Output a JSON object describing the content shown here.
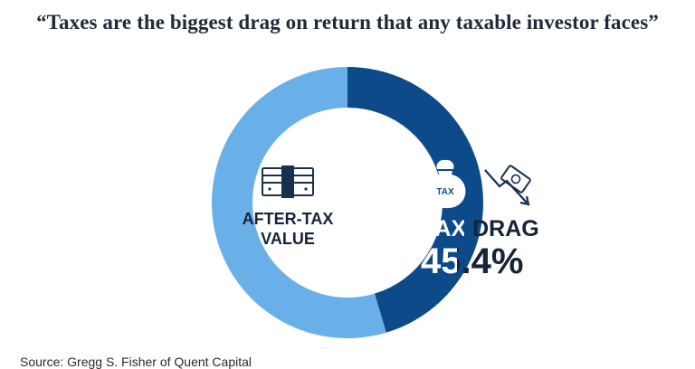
{
  "chart_data": {
    "type": "pie",
    "title": "“Taxes are the biggest drag on return that any taxable investor faces”",
    "slices": [
      {
        "label": "TAX DRAG",
        "value": 45.4,
        "value_label": "45.4%",
        "color": "#0d4a8a"
      },
      {
        "label_lines": [
          "AFTER-TAX",
          "VALUE"
        ],
        "value": 54.6,
        "color": "#6ab0e8"
      }
    ],
    "donut": true,
    "icon_labels": {
      "tax_bag": "TAX"
    },
    "source": "Source: Gregg S. Fisher of Quent Capital"
  },
  "icons": {
    "tax_bag": "money-bag-icon",
    "cash": "cash-stack-icon",
    "falling_money": "falling-money-icon"
  }
}
